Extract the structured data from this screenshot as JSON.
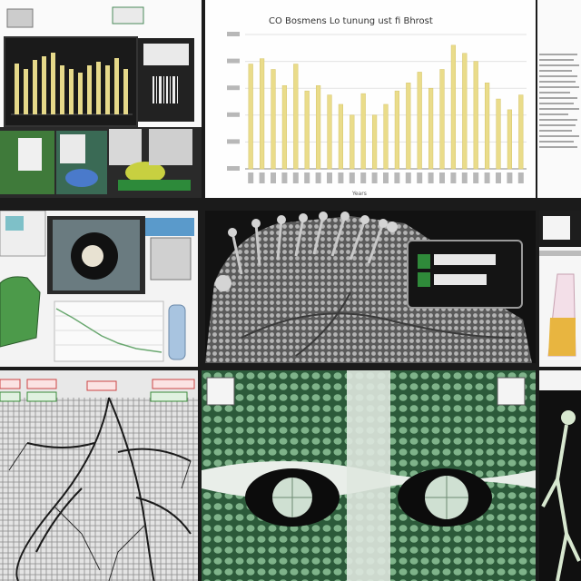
{
  "collage": {
    "tile_count": 9,
    "background": "#1b1b1b"
  },
  "top_center_chart": {
    "title": "CO Bosmens Lo tunung ust fi Bhrost",
    "xlabel": "Years"
  },
  "chart_data": {
    "type": "bar",
    "title": "CO Bosmens Lo tunung ust fi Bhrost",
    "xlabel": "Years",
    "ylabel": "",
    "categories": [
      "1",
      "2",
      "3",
      "4",
      "5",
      "6",
      "7",
      "8",
      "9",
      "10",
      "11",
      "12",
      "13",
      "14",
      "15",
      "16",
      "17",
      "18",
      "19",
      "20",
      "21",
      "22",
      "23",
      "24",
      "25"
    ],
    "values": [
      78,
      82,
      74,
      62,
      78,
      58,
      62,
      55,
      48,
      40,
      56,
      40,
      48,
      58,
      64,
      72,
      60,
      74,
      92,
      86,
      80,
      64,
      52,
      44,
      55
    ],
    "ylim": [
      0,
      100
    ],
    "grid": true,
    "legend": "none",
    "bar_color": "#eadc8a"
  },
  "colors": {
    "chart_bar": "#eadc8a",
    "leaf_green": "#3f8a52",
    "status_green": "#2f8a3a",
    "dark_panel": "#141414"
  },
  "icons": [
    "gauge-icon",
    "vial-icon",
    "status-indicator-icon"
  ]
}
